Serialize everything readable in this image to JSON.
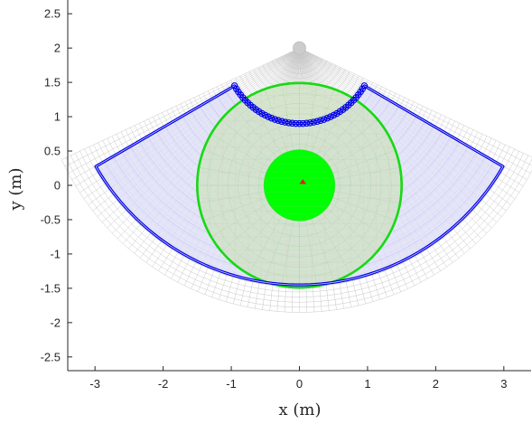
{
  "chart_data": {
    "type": "scatter",
    "title": "",
    "xlabel": "x (m)",
    "ylabel": "y (m)",
    "xlim": [
      -3.4,
      3.4
    ],
    "ylim": [
      -2.7,
      2.7
    ],
    "xticks": [
      -3,
      -2,
      -1,
      0,
      1,
      2,
      3
    ],
    "yticks": [
      2.5,
      2,
      1.5,
      1,
      0.5,
      0,
      -0.5,
      -1,
      -1.5,
      -2,
      -2.5
    ],
    "grid": false,
    "box": "left and bottom axes only",
    "colors": {
      "grid_mesh": "#c8c8c8",
      "blue_boundary": "#0000e6",
      "blue_fill": "#dcdcf8",
      "red_circle": "#e60000",
      "red_fill": "#f7d9d9",
      "green_circle": "#14dc14",
      "green_fill": "#bde5bd",
      "green_disk": "#00ff00",
      "apex_marker": "#cccccc"
    },
    "shapes": {
      "gray_sector_grid": {
        "center": [
          0,
          2
        ],
        "r_inner": 0,
        "r_outer": 3.85,
        "angle_from_down_deg": 65
      },
      "blue_annular_sector": {
        "center": [
          0,
          2
        ],
        "r_inner": 1.1,
        "r_outer": 3.45,
        "angle_from_down_deg": 60
      },
      "red_circle": {
        "center": [
          0,
          0
        ],
        "r": 1.5
      },
      "green_circle": {
        "center": [
          0,
          0
        ],
        "r": 1.5
      },
      "green_disk": {
        "center": [
          0,
          0
        ],
        "r": 0.52
      },
      "apex_marker": {
        "x": 0,
        "y": 2
      },
      "center_marker": {
        "x": 0.05,
        "y": 0.05
      }
    }
  }
}
